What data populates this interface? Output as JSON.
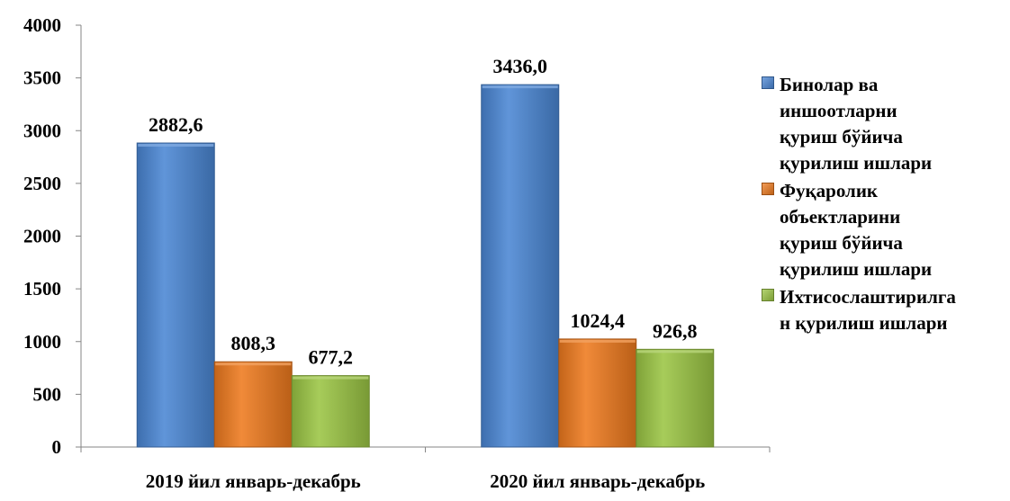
{
  "chart_data": {
    "type": "bar",
    "title": "",
    "xlabel": "",
    "ylabel": "",
    "ylim": [
      0,
      4000
    ],
    "yticks": [
      0,
      500,
      1000,
      1500,
      2000,
      2500,
      3000,
      3500,
      4000
    ],
    "ytick_labels": [
      "0",
      "500",
      "1000",
      "1500",
      "2000",
      "2500",
      "3000",
      "3500",
      "4000"
    ],
    "grid": false,
    "legend_position": "right",
    "categories": [
      "2019 йил январь-декабрь",
      "2020 йил январь-декабрь"
    ],
    "series": [
      {
        "name": "Бинолар ва иншоотларни қуриш бўйича қурилиш ишлари",
        "legend_text": "Бинолар ва\nиншоотларни\nқуриш бўйича\nқурилиш ишлари",
        "color": "#4A86D4",
        "values": [
          2882.6,
          3436.0
        ],
        "labels": [
          "2882,6",
          "3436,0"
        ]
      },
      {
        "name": "Фуқаролик объектларини қуриш бўйича қурилиш ишлари",
        "legend_text": "Фуқаролик\nобъектларини\nқуриш бўйича\nқурилиш ишлари",
        "color": "#EE7A1E",
        "values": [
          808.3,
          1024.4
        ],
        "labels": [
          "808,3",
          "1024,4"
        ]
      },
      {
        "name": "Ихтисослаштирилган қурилиш ишлари",
        "legend_text": "Ихтисослаштирилга\nн қурилиш ишлари",
        "color": "#9BC544",
        "values": [
          677.2,
          926.8
        ],
        "labels": [
          "677,2",
          "926,8"
        ]
      }
    ]
  }
}
